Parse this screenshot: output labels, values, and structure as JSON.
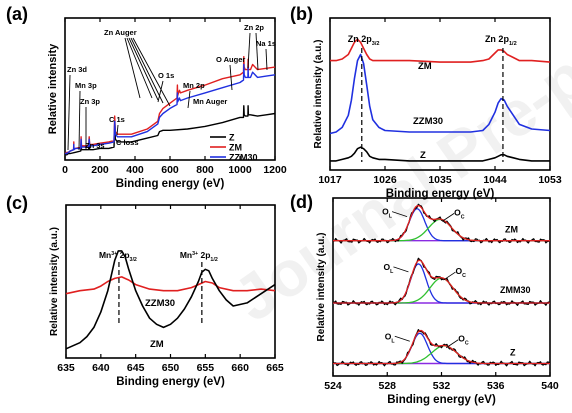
{
  "chart_data": [
    {
      "id": "a",
      "panel_label": "(a)",
      "type": "line",
      "xlabel": "Binding energy (eV)",
      "ylabel": "Relative intensity",
      "xlim": [
        0,
        1200
      ],
      "ylim": [
        0,
        110
      ],
      "xticks": [
        0,
        200,
        400,
        600,
        800,
        1000,
        1200
      ],
      "legend": {
        "placement": "bottom-right",
        "entries": [
          "Z",
          "ZM",
          "ZZM30"
        ]
      },
      "series": [
        {
          "name": "Z",
          "color": "#000000",
          "x": [
            0,
            10,
            20,
            30,
            60,
            90,
            92,
            94,
            100,
            135,
            138,
            141,
            160,
            200,
            250,
            280,
            284,
            288,
            300,
            380,
            470,
            530,
            540,
            560,
            600,
            700,
            800,
            900,
            1000,
            1020,
            1022,
            1024,
            1030,
            1045,
            1046,
            1048,
            1060,
            1100,
            1150,
            1200
          ],
          "y": [
            4,
            4,
            5,
            5,
            6,
            7,
            12,
            8,
            8,
            8,
            13,
            8,
            8,
            9,
            9,
            10,
            24,
            16,
            14,
            14,
            17,
            19,
            22,
            23,
            23,
            24,
            26,
            29,
            33,
            33,
            42,
            35,
            34,
            34,
            42,
            35,
            35,
            34,
            35,
            36
          ]
        },
        {
          "name": "ZM",
          "color": "#e02020",
          "x": [
            0,
            10,
            20,
            30,
            49,
            50,
            51,
            60,
            90,
            92,
            94,
            100,
            135,
            138,
            141,
            160,
            200,
            250,
            280,
            284,
            288,
            300,
            380,
            470,
            530,
            540,
            560,
            600,
            640,
            642,
            644,
            654,
            660,
            700,
            800,
            900,
            1000,
            1020,
            1022,
            1024,
            1030,
            1045,
            1046,
            1048,
            1060,
            1072,
            1100,
            1150,
            1200
          ],
          "y": [
            5,
            6,
            6,
            7,
            8,
            14,
            9,
            9,
            10,
            18,
            11,
            11,
            11,
            18,
            12,
            12,
            13,
            14,
            15,
            34,
            22,
            20,
            20,
            24,
            30,
            36,
            40,
            44,
            48,
            58,
            50,
            54,
            52,
            54,
            58,
            63,
            66,
            68,
            80,
            72,
            70,
            70,
            78,
            70,
            70,
            74,
            70,
            71,
            72
          ]
        },
        {
          "name": "ZZM30",
          "color": "#2030e0",
          "x": [
            0,
            10,
            20,
            30,
            49,
            50,
            51,
            60,
            90,
            92,
            94,
            100,
            135,
            138,
            141,
            160,
            200,
            250,
            280,
            284,
            288,
            300,
            380,
            470,
            530,
            540,
            560,
            600,
            640,
            642,
            644,
            654,
            660,
            700,
            800,
            900,
            1000,
            1020,
            1022,
            1024,
            1030,
            1045,
            1046,
            1048,
            1060,
            1072,
            1100,
            1150,
            1200
          ],
          "y": [
            5,
            5,
            6,
            7,
            8,
            12,
            8,
            9,
            9,
            16,
            10,
            10,
            10,
            16,
            11,
            11,
            12,
            13,
            14,
            30,
            20,
            18,
            18,
            22,
            28,
            33,
            36,
            40,
            43,
            52,
            45,
            48,
            46,
            48,
            52,
            56,
            60,
            62,
            74,
            66,
            64,
            64,
            72,
            64,
            64,
            68,
            64,
            65,
            66
          ]
        }
      ],
      "annotations": [
        "Zn 3d",
        "Mn 3p",
        "Zn 3p",
        "Zn 3s",
        "C 1s",
        "C loss",
        "Zn Auger",
        "O 1s",
        "Mn 2p",
        "Mn Auger",
        "O Auger",
        "Zn 2p",
        "Na 1s"
      ]
    },
    {
      "id": "b",
      "panel_label": "(b)",
      "type": "line",
      "xlabel": "Binding energy (eV)",
      "ylabel": "Relative intensity (a.u.)",
      "xlim": [
        1017,
        1053
      ],
      "ylim": [
        0,
        100
      ],
      "xticks": [
        1017,
        1026,
        1035,
        1044,
        1053
      ],
      "peak_markers": [
        1022.2,
        1045.3
      ],
      "peak_labels": [
        {
          "main": "Zn 2p",
          "sub": "3/2"
        },
        {
          "main": "Zn 2p",
          "sub": "1/2"
        }
      ],
      "series": [
        {
          "name": "ZM",
          "color": "#e02020",
          "x": [
            1017,
            1018,
            1019,
            1020,
            1020.5,
            1021,
            1021.5,
            1022,
            1022.5,
            1023,
            1023.5,
            1024,
            1025,
            1026,
            1030,
            1035,
            1040,
            1042,
            1043,
            1044,
            1044.5,
            1045,
            1045.5,
            1046,
            1047,
            1048,
            1050,
            1053
          ],
          "y": [
            72,
            72,
            73,
            76,
            80,
            84,
            86,
            84,
            80,
            76,
            73,
            72,
            72,
            72,
            72,
            71,
            71,
            72,
            73,
            77,
            79,
            79,
            78,
            76,
            74,
            72,
            72,
            71
          ]
        },
        {
          "name": "ZZM30",
          "color": "#2030e0",
          "x": [
            1017,
            1018,
            1019,
            1020,
            1020.5,
            1021,
            1021.5,
            1022,
            1022.5,
            1023,
            1023.5,
            1024,
            1025,
            1026,
            1030,
            1035,
            1040,
            1042,
            1043,
            1044,
            1044.5,
            1045,
            1045.5,
            1046,
            1047,
            1048,
            1050,
            1053
          ],
          "y": [
            24,
            25,
            28,
            36,
            46,
            60,
            72,
            76,
            70,
            56,
            42,
            33,
            28,
            26,
            25,
            25,
            25,
            26,
            30,
            38,
            44,
            47,
            46,
            42,
            36,
            30,
            27,
            26
          ]
        },
        {
          "name": "Z",
          "color": "#000000",
          "x": [
            1017,
            1018,
            1019,
            1020,
            1020.5,
            1021,
            1021.5,
            1022,
            1022.5,
            1023,
            1023.5,
            1024,
            1025,
            1026,
            1030,
            1035,
            1040,
            1042,
            1043,
            1044,
            1044.5,
            1045,
            1045.5,
            1046,
            1047,
            1048,
            1050,
            1053
          ],
          "y": [
            6,
            6,
            7,
            8,
            9,
            11,
            14,
            15,
            14,
            12,
            9,
            8,
            7,
            7,
            6,
            6,
            6,
            6,
            7,
            8,
            9,
            10,
            10,
            9,
            8,
            7,
            6,
            6
          ]
        }
      ],
      "series_labels": [
        "ZM",
        "ZZM30",
        "Z"
      ]
    },
    {
      "id": "c",
      "panel_label": "(c)",
      "type": "line",
      "xlabel": "Binding energy (eV)",
      "ylabel": "Relative intensity (a.u.)",
      "xlim": [
        635,
        665
      ],
      "ylim": [
        0,
        100
      ],
      "xticks": [
        635,
        640,
        645,
        650,
        655,
        660,
        665
      ],
      "peak_markers": [
        642.6,
        654.5
      ],
      "peak_labels": [
        {
          "pre": "Mn",
          "sup": "3+",
          "main": " 2p",
          "sub": "3/2"
        },
        {
          "pre": "Mn",
          "sup": "3+",
          "main": " 2p",
          "sub": "1/2"
        }
      ],
      "series": [
        {
          "name": "ZZM30",
          "color": "#e02020",
          "x": [
            635,
            637,
            639,
            640,
            641,
            642,
            643,
            644,
            645,
            647,
            649,
            651,
            653,
            654,
            655,
            656,
            657,
            659,
            661,
            663,
            665
          ],
          "y": [
            42,
            44,
            45,
            47,
            50,
            52,
            53,
            51,
            48,
            45,
            44,
            44,
            46,
            48,
            50,
            49,
            46,
            44,
            44,
            45,
            44
          ]
        },
        {
          "name": "ZM",
          "color": "#000000",
          "x": [
            635,
            637,
            638,
            639,
            640,
            641,
            641.5,
            642,
            642.5,
            643,
            643.5,
            644,
            645,
            646,
            647,
            648,
            649,
            650,
            651,
            652,
            653,
            654,
            654.5,
            655,
            655.5,
            656,
            657,
            658,
            659,
            661,
            663,
            665
          ],
          "y": [
            6,
            10,
            14,
            20,
            30,
            44,
            54,
            64,
            70,
            70,
            66,
            58,
            44,
            34,
            26,
            22,
            20,
            22,
            26,
            32,
            40,
            50,
            56,
            58,
            57,
            52,
            44,
            38,
            34,
            36,
            42,
            48
          ]
        }
      ],
      "series_labels": [
        "ZZM30",
        "ZM"
      ]
    },
    {
      "id": "d",
      "panel_label": "(d)",
      "type": "line",
      "xlabel": "Binding energy (eV)",
      "ylabel": "Relative intensity (a.u.)",
      "xlim": [
        524,
        540
      ],
      "ylim": [
        0,
        100
      ],
      "xticks": [
        524,
        528,
        532,
        536,
        540
      ],
      "component_legend": {
        "main": "O",
        "labels": [
          "L",
          "C"
        ]
      },
      "samples": [
        {
          "name": "ZM",
          "baseline": 76,
          "ol": {
            "center": 530.2,
            "height": 18,
            "width": 0.8
          },
          "oc": {
            "center": 531.9,
            "height": 12,
            "width": 1.2
          }
        },
        {
          "name": "ZMM30",
          "baseline": 41,
          "ol": {
            "center": 530.3,
            "height": 22,
            "width": 0.8
          },
          "oc": {
            "center": 532.0,
            "height": 14,
            "width": 1.2
          }
        },
        {
          "name": "Z",
          "baseline": 7,
          "ol": {
            "center": 530.4,
            "height": 17,
            "width": 0.8
          },
          "oc": {
            "center": 532.2,
            "height": 10,
            "width": 1.3
          }
        }
      ],
      "line_colors": {
        "data": "#000000",
        "envelope": "#e02020",
        "ol": "#2030e0",
        "oc": "#30c030",
        "baseline": "#8a2be2"
      }
    }
  ],
  "watermark": "Journal Pre-proofs"
}
